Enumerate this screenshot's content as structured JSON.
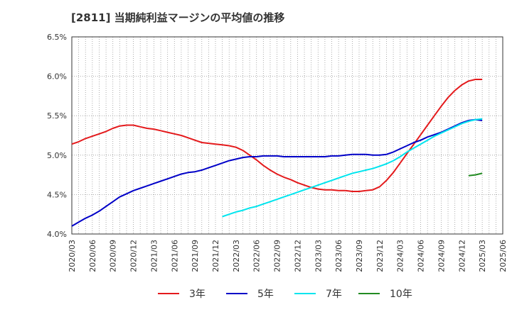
{
  "chart_data": {
    "type": "line",
    "title": "[2811]  当期純利益マージンの平均値の推移",
    "xlabel": "",
    "ylabel": "",
    "y_ticks": [
      "4.0%",
      "4.5%",
      "5.0%",
      "5.5%",
      "6.0%",
      "6.5%"
    ],
    "y_tick_values": [
      4.0,
      4.5,
      5.0,
      5.5,
      6.0,
      6.5
    ],
    "ylim": [
      4.0,
      6.5
    ],
    "x_ticks": [
      "2020/03",
      "2020/06",
      "2020/09",
      "2020/12",
      "2021/03",
      "2021/06",
      "2021/09",
      "2021/12",
      "2022/03",
      "2022/06",
      "2022/09",
      "2022/12",
      "2023/03",
      "2023/06",
      "2023/09",
      "2023/12",
      "2024/03",
      "2024/06",
      "2024/09",
      "2024/12",
      "2025/03",
      "2025/06"
    ],
    "grid": true,
    "legend_position": "bottom",
    "series": [
      {
        "name": "3年",
        "color": "#e41a1c",
        "points": [
          [
            "2020/03",
            5.14
          ],
          [
            "2020/04",
            5.17
          ],
          [
            "2020/05",
            5.21
          ],
          [
            "2020/06",
            5.24
          ],
          [
            "2020/07",
            5.27
          ],
          [
            "2020/08",
            5.3
          ],
          [
            "2020/09",
            5.34
          ],
          [
            "2020/10",
            5.37
          ],
          [
            "2020/11",
            5.38
          ],
          [
            "2020/12",
            5.38
          ],
          [
            "2021/01",
            5.36
          ],
          [
            "2021/02",
            5.34
          ],
          [
            "2021/03",
            5.33
          ],
          [
            "2021/04",
            5.31
          ],
          [
            "2021/05",
            5.29
          ],
          [
            "2021/06",
            5.27
          ],
          [
            "2021/07",
            5.25
          ],
          [
            "2021/08",
            5.22
          ],
          [
            "2021/09",
            5.19
          ],
          [
            "2021/10",
            5.16
          ],
          [
            "2021/11",
            5.15
          ],
          [
            "2021/12",
            5.14
          ],
          [
            "2022/01",
            5.13
          ],
          [
            "2022/02",
            5.12
          ],
          [
            "2022/03",
            5.1
          ],
          [
            "2022/04",
            5.06
          ],
          [
            "2022/05",
            5.0
          ],
          [
            "2022/06",
            4.94
          ],
          [
            "2022/07",
            4.87
          ],
          [
            "2022/08",
            4.81
          ],
          [
            "2022/09",
            4.76
          ],
          [
            "2022/10",
            4.72
          ],
          [
            "2022/11",
            4.69
          ],
          [
            "2022/12",
            4.65
          ],
          [
            "2023/01",
            4.62
          ],
          [
            "2023/02",
            4.59
          ],
          [
            "2023/03",
            4.57
          ],
          [
            "2023/04",
            4.56
          ],
          [
            "2023/05",
            4.56
          ],
          [
            "2023/06",
            4.55
          ],
          [
            "2023/07",
            4.55
          ],
          [
            "2023/08",
            4.54
          ],
          [
            "2023/09",
            4.54
          ],
          [
            "2023/10",
            4.55
          ],
          [
            "2023/11",
            4.56
          ],
          [
            "2023/12",
            4.6
          ],
          [
            "2024/01",
            4.68
          ],
          [
            "2024/02",
            4.78
          ],
          [
            "2024/03",
            4.9
          ],
          [
            "2024/04",
            5.02
          ],
          [
            "2024/05",
            5.14
          ],
          [
            "2024/06",
            5.26
          ],
          [
            "2024/07",
            5.38
          ],
          [
            "2024/08",
            5.5
          ],
          [
            "2024/09",
            5.62
          ],
          [
            "2024/10",
            5.73
          ],
          [
            "2024/11",
            5.82
          ],
          [
            "2024/12",
            5.89
          ],
          [
            "2025/01",
            5.94
          ],
          [
            "2025/02",
            5.96
          ],
          [
            "2025/03",
            5.96
          ]
        ]
      },
      {
        "name": "5年",
        "color": "#0000c8",
        "points": [
          [
            "2020/03",
            4.1
          ],
          [
            "2020/04",
            4.15
          ],
          [
            "2020/05",
            4.2
          ],
          [
            "2020/06",
            4.24
          ],
          [
            "2020/07",
            4.29
          ],
          [
            "2020/08",
            4.35
          ],
          [
            "2020/09",
            4.41
          ],
          [
            "2020/10",
            4.47
          ],
          [
            "2020/11",
            4.51
          ],
          [
            "2020/12",
            4.55
          ],
          [
            "2021/01",
            4.58
          ],
          [
            "2021/02",
            4.61
          ],
          [
            "2021/03",
            4.64
          ],
          [
            "2021/04",
            4.67
          ],
          [
            "2021/05",
            4.7
          ],
          [
            "2021/06",
            4.73
          ],
          [
            "2021/07",
            4.76
          ],
          [
            "2021/08",
            4.78
          ],
          [
            "2021/09",
            4.79
          ],
          [
            "2021/10",
            4.81
          ],
          [
            "2021/11",
            4.84
          ],
          [
            "2021/12",
            4.87
          ],
          [
            "2022/01",
            4.9
          ],
          [
            "2022/02",
            4.93
          ],
          [
            "2022/03",
            4.95
          ],
          [
            "2022/04",
            4.97
          ],
          [
            "2022/05",
            4.98
          ],
          [
            "2022/06",
            4.98
          ],
          [
            "2022/07",
            4.99
          ],
          [
            "2022/08",
            4.99
          ],
          [
            "2022/09",
            4.99
          ],
          [
            "2022/10",
            4.98
          ],
          [
            "2022/11",
            4.98
          ],
          [
            "2022/12",
            4.98
          ],
          [
            "2023/01",
            4.98
          ],
          [
            "2023/02",
            4.98
          ],
          [
            "2023/03",
            4.98
          ],
          [
            "2023/04",
            4.98
          ],
          [
            "2023/05",
            4.99
          ],
          [
            "2023/06",
            4.99
          ],
          [
            "2023/07",
            5.0
          ],
          [
            "2023/08",
            5.01
          ],
          [
            "2023/09",
            5.01
          ],
          [
            "2023/10",
            5.01
          ],
          [
            "2023/11",
            5.0
          ],
          [
            "2023/12",
            5.0
          ],
          [
            "2024/01",
            5.01
          ],
          [
            "2024/02",
            5.04
          ],
          [
            "2024/03",
            5.08
          ],
          [
            "2024/04",
            5.12
          ],
          [
            "2024/05",
            5.16
          ],
          [
            "2024/06",
            5.19
          ],
          [
            "2024/07",
            5.23
          ],
          [
            "2024/08",
            5.26
          ],
          [
            "2024/09",
            5.29
          ],
          [
            "2024/10",
            5.33
          ],
          [
            "2024/11",
            5.37
          ],
          [
            "2024/12",
            5.41
          ],
          [
            "2025/01",
            5.44
          ],
          [
            "2025/02",
            5.45
          ],
          [
            "2025/03",
            5.44
          ]
        ]
      },
      {
        "name": "7年",
        "color": "#00e5ee",
        "points": [
          [
            "2022/01",
            4.22
          ],
          [
            "2022/02",
            4.25
          ],
          [
            "2022/03",
            4.28
          ],
          [
            "2022/04",
            4.3
          ],
          [
            "2022/05",
            4.33
          ],
          [
            "2022/06",
            4.35
          ],
          [
            "2022/07",
            4.38
          ],
          [
            "2022/08",
            4.41
          ],
          [
            "2022/09",
            4.44
          ],
          [
            "2022/10",
            4.47
          ],
          [
            "2022/11",
            4.5
          ],
          [
            "2022/12",
            4.53
          ],
          [
            "2023/01",
            4.56
          ],
          [
            "2023/02",
            4.59
          ],
          [
            "2023/03",
            4.62
          ],
          [
            "2023/04",
            4.65
          ],
          [
            "2023/05",
            4.68
          ],
          [
            "2023/06",
            4.71
          ],
          [
            "2023/07",
            4.74
          ],
          [
            "2023/08",
            4.77
          ],
          [
            "2023/09",
            4.79
          ],
          [
            "2023/10",
            4.81
          ],
          [
            "2023/11",
            4.83
          ],
          [
            "2023/12",
            4.86
          ],
          [
            "2024/01",
            4.89
          ],
          [
            "2024/02",
            4.93
          ],
          [
            "2024/03",
            4.98
          ],
          [
            "2024/04",
            5.04
          ],
          [
            "2024/05",
            5.09
          ],
          [
            "2024/06",
            5.14
          ],
          [
            "2024/07",
            5.19
          ],
          [
            "2024/08",
            5.24
          ],
          [
            "2024/09",
            5.28
          ],
          [
            "2024/10",
            5.32
          ],
          [
            "2024/11",
            5.36
          ],
          [
            "2024/12",
            5.4
          ],
          [
            "2025/01",
            5.43
          ],
          [
            "2025/02",
            5.45
          ],
          [
            "2025/03",
            5.46
          ]
        ]
      },
      {
        "name": "10年",
        "color": "#228b22",
        "points": [
          [
            "2025/01",
            4.74
          ],
          [
            "2025/02",
            4.75
          ],
          [
            "2025/03",
            4.77
          ]
        ]
      }
    ]
  }
}
